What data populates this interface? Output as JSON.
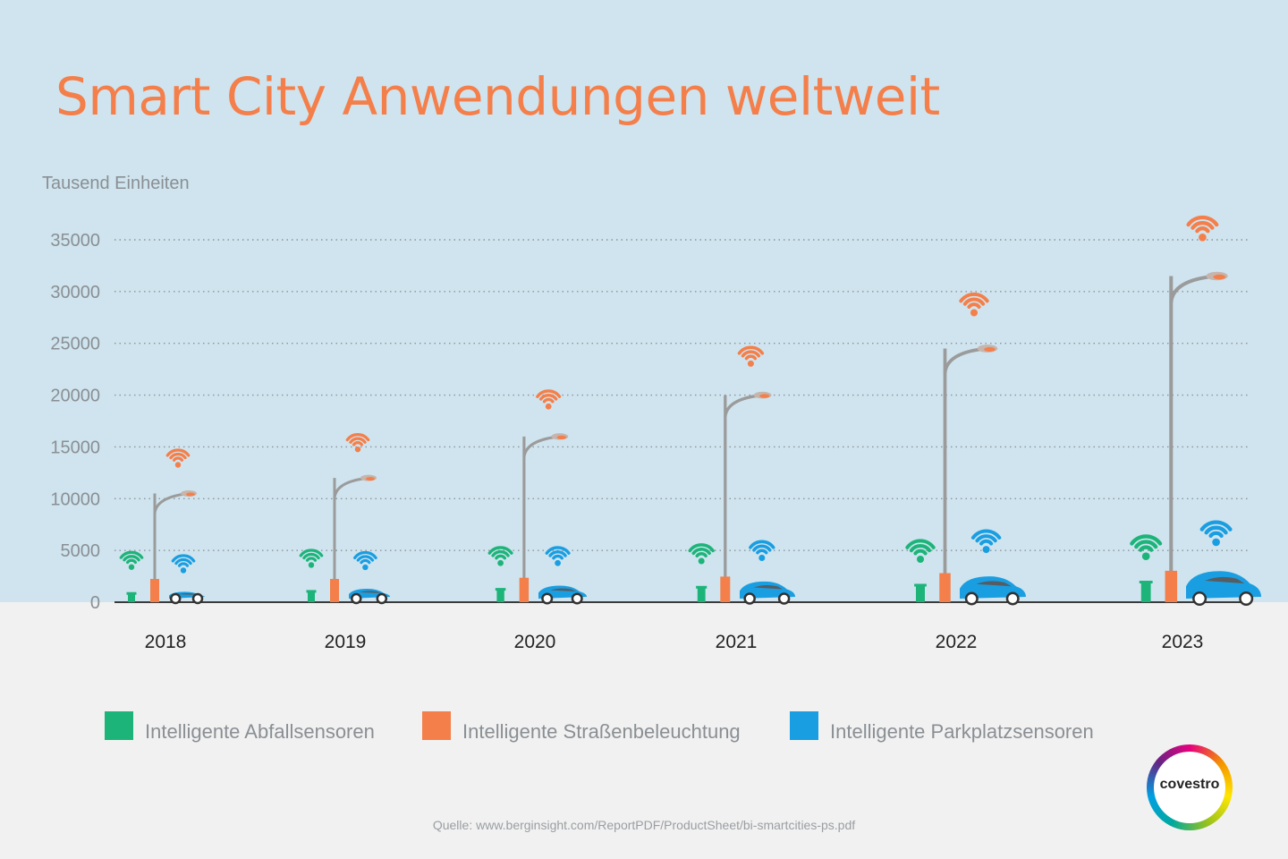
{
  "title": "Smart City Anwendungen weltweit",
  "source": "Quelle: www.berginsight.com/ReportPDF/ProductSheet/bi-smartcities-ps.pdf",
  "logo": "covestro",
  "colors": {
    "abfall": "#1db47a",
    "strasse": "#f47f4a",
    "park": "#1a9ee2",
    "title": "#f47f4a",
    "pole": "#9b9b9b",
    "sky": "#cfe4ee",
    "ground": "#f1f1f1"
  },
  "legend": [
    {
      "label": "Intelligente Abfallsensoren",
      "color": "#1db47a"
    },
    {
      "label": "Intelligente Straßenbeleuchtung",
      "color": "#f47f4a"
    },
    {
      "label": "Intelligente Parkplatzsensoren",
      "color": "#1a9ee2"
    }
  ],
  "chart_data": {
    "type": "bar",
    "ylabel": "Tausend Einheiten",
    "ylim": [
      0,
      35000
    ],
    "yticks": [
      "0",
      "5000",
      "10000",
      "15000",
      "20000",
      "25000",
      "30000",
      "35000"
    ],
    "grid": true,
    "categories": [
      "2018",
      "2019",
      "2020",
      "2021",
      "2022",
      "2023"
    ],
    "series": [
      {
        "name": "Intelligente Abfallsensoren",
        "values": [
          800,
          1000,
          1200,
          1400,
          1600,
          1900
        ],
        "icon": "waste-bin-icon"
      },
      {
        "name": "Intelligente Straßenbeleuchtung",
        "values": [
          10500,
          12000,
          16000,
          20000,
          24500,
          31500
        ],
        "icon": "street-lamp-icon"
      },
      {
        "name": "Intelligente Parkplatzsensoren",
        "values": [
          1000,
          1300,
          1600,
          2000,
          2500,
          3000
        ],
        "icon": "car-icon"
      }
    ]
  }
}
